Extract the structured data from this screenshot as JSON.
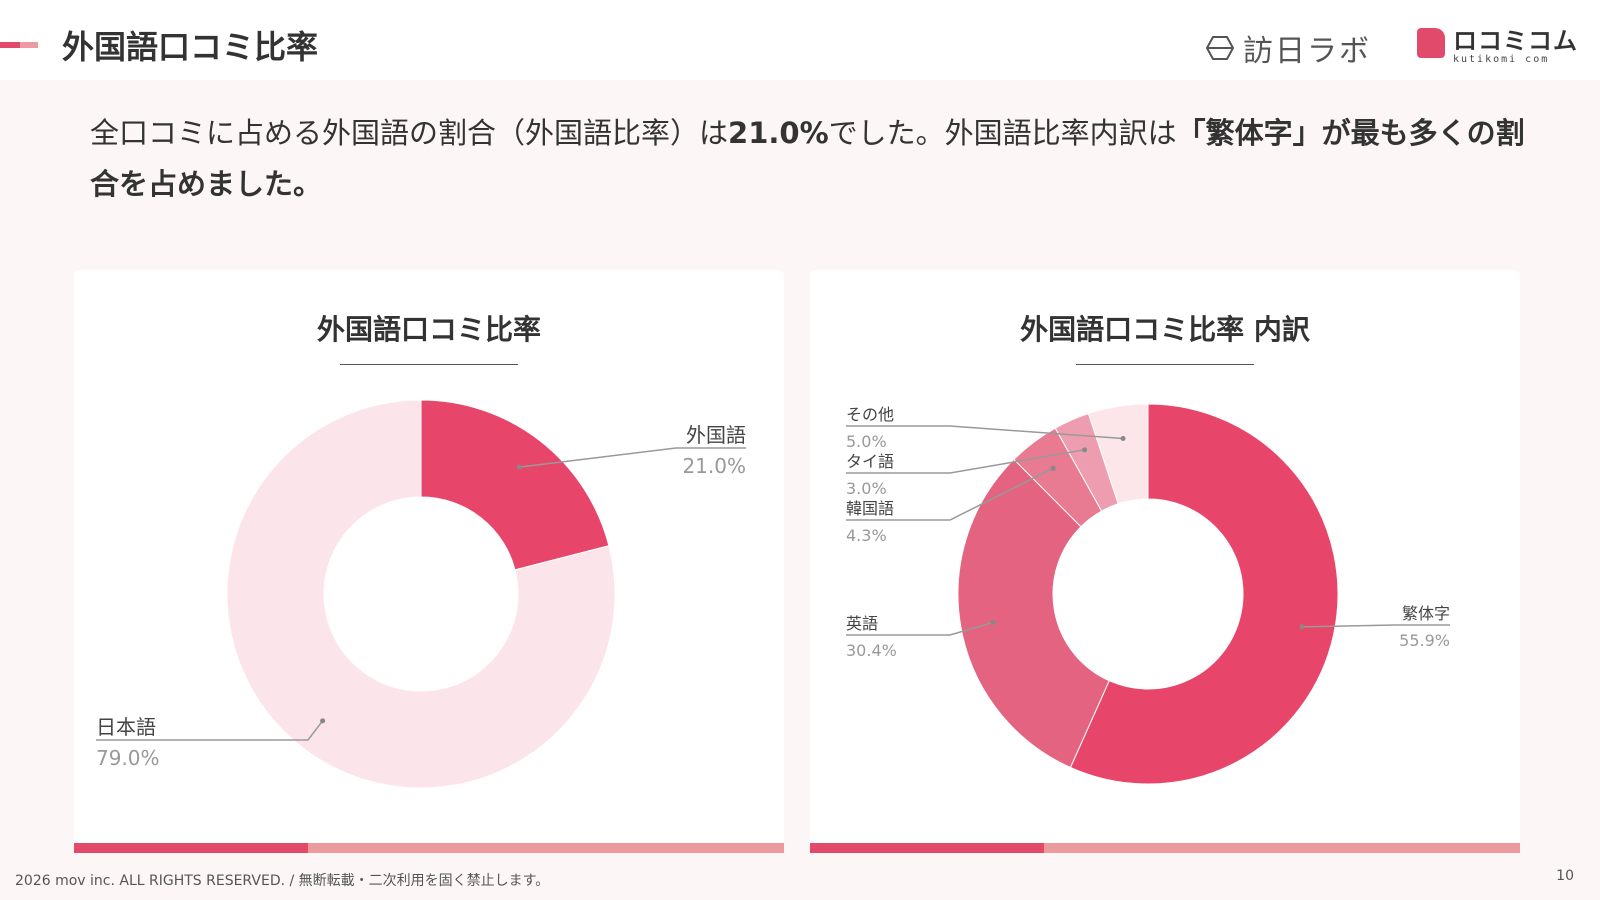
{
  "header": {
    "title": "外国語口コミ比率",
    "brand1": "訪日ラボ",
    "brand2_name": "ロコミコム",
    "brand2_sub": "kutikomi com"
  },
  "summary": {
    "part1": "全口コミに占める外国語の割合（外国語比率）は",
    "rate": "21.0%",
    "part2": "でした。外国語比率内訳は",
    "highlight": "「繁体字」が最も多くの割合を占めました。"
  },
  "colors": {
    "accent": "#e24a6c",
    "accent_light": "#ec9a9c",
    "background": "#fdf6f7"
  },
  "chart_data": [
    {
      "type": "pie",
      "title": "外国語口コミ比率",
      "donut": true,
      "slices": [
        {
          "label": "外国語",
          "value": 21.0,
          "value_label": "21.0%",
          "color": "#e8456b"
        },
        {
          "label": "日本語",
          "value": 79.0,
          "value_label": "79.0%",
          "color": "#fbe4ea"
        }
      ]
    },
    {
      "type": "pie",
      "title": "外国語口コミ比率 内訳",
      "donut": true,
      "slices": [
        {
          "label": "繁体字",
          "value": 55.9,
          "value_label": "55.9%",
          "color": "#e8456b"
        },
        {
          "label": "英語",
          "value": 30.4,
          "value_label": "30.4%",
          "color": "#e46380"
        },
        {
          "label": "韓国語",
          "value": 4.3,
          "value_label": "4.3%",
          "color": "#e87b92"
        },
        {
          "label": "タイ語",
          "value": 3.0,
          "value_label": "3.0%",
          "color": "#ee9db0"
        },
        {
          "label": "その他",
          "value": 5.0,
          "value_label": "5.0%",
          "color": "#fde6ea"
        }
      ]
    }
  ],
  "footer": {
    "copyright": "2026 mov inc. ALL RIGHTS RESERVED. / 無断転載・二次利用を固く禁止します。",
    "page": "10"
  }
}
